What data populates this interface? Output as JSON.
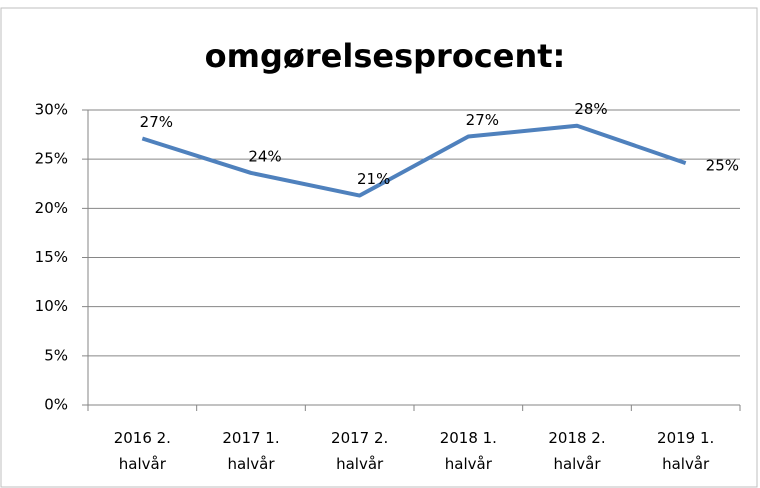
{
  "chart_data": {
    "type": "line",
    "title": "omgørelsesprocent:",
    "categories": [
      "2016 2. halvår",
      "2017 1. halvår",
      "2017 2. halvår",
      "2018 1. halvår",
      "2018 2. halvår",
      "2019 1. halvår"
    ],
    "series": [
      {
        "name": "omgørelsesprocent",
        "color": "#4f81bd",
        "values": [
          27.1,
          23.6,
          21.3,
          27.3,
          28.4,
          24.6
        ],
        "value_labels": [
          "27%",
          "24%",
          "21%",
          "27%",
          "28%",
          "25%"
        ]
      }
    ],
    "ylim": [
      0,
      30
    ],
    "yticks": [
      {
        "value": 0,
        "label": "0%"
      },
      {
        "value": 5,
        "label": "5%"
      },
      {
        "value": 10,
        "label": "10%"
      },
      {
        "value": 15,
        "label": "15%"
      },
      {
        "value": 20,
        "label": "20%"
      },
      {
        "value": 25,
        "label": "25%"
      },
      {
        "value": 30,
        "label": "30%"
      }
    ],
    "grid": true
  }
}
